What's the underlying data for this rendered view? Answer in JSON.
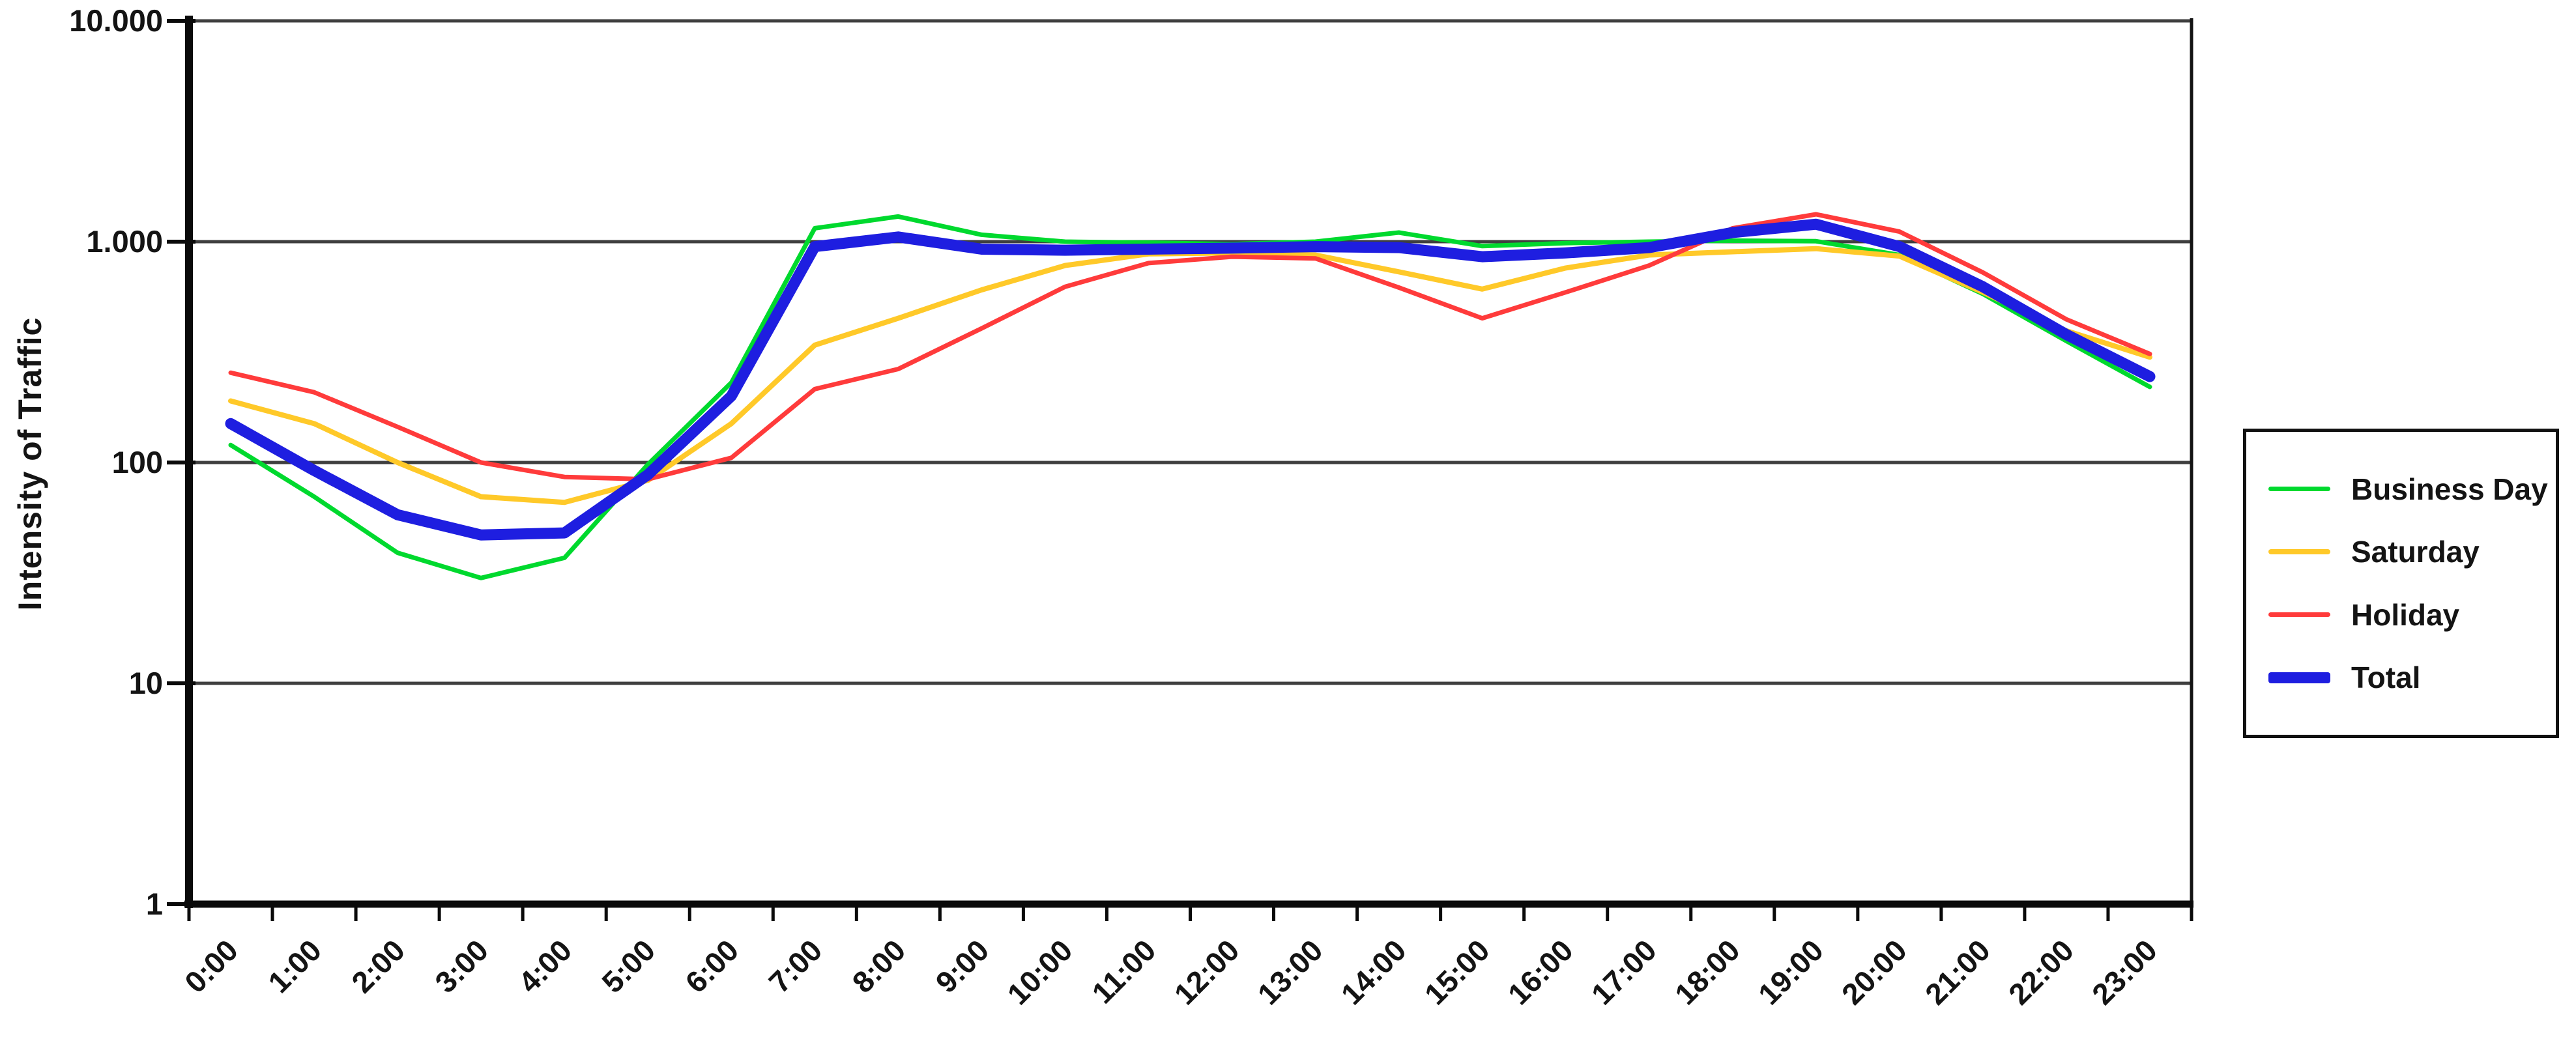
{
  "chart_data": {
    "type": "line",
    "title": "",
    "xlabel": "",
    "ylabel": "Intensity of Traffic",
    "y_scale": "log10",
    "ylim": [
      1,
      10000
    ],
    "y_tick_labels": [
      "1",
      "10",
      "100",
      "1.000",
      "10.000"
    ],
    "grid": "horizontal-gridlines-at-powers-of-10",
    "legend_position": "right-outside",
    "categories": [
      "0:00",
      "1:00",
      "2:00",
      "3:00",
      "4:00",
      "5:00",
      "6:00",
      "7:00",
      "8:00",
      "9:00",
      "10:00",
      "11:00",
      "12:00",
      "13:00",
      "14:00",
      "15:00",
      "16:00",
      "17:00",
      "18:00",
      "19:00",
      "20:00",
      "21:00",
      "22:00",
      "23:00"
    ],
    "series": [
      {
        "name": "Business Day",
        "color": "#00D92E",
        "line_width": 7,
        "values": [
          120,
          70,
          39,
          30,
          37,
          98,
          230,
          1150,
          1300,
          1075,
          1000,
          990,
          975,
          1000,
          1100,
          955,
          985,
          1000,
          1010,
          1005,
          870,
          580,
          355,
          220
        ]
      },
      {
        "name": "Saturday",
        "color": "#FFC929",
        "line_width": 8,
        "values": [
          190,
          150,
          100,
          70,
          66,
          83,
          150,
          340,
          450,
          605,
          780,
          880,
          890,
          870,
          730,
          610,
          760,
          870,
          900,
          930,
          860,
          590,
          395,
          300
        ]
      },
      {
        "name": "Holiday",
        "color": "#FF3B3B",
        "line_width": 7,
        "values": [
          255,
          208,
          145,
          100,
          86,
          84,
          105,
          215,
          265,
          405,
          625,
          800,
          855,
          840,
          620,
          450,
          590,
          780,
          1150,
          1330,
          1110,
          725,
          445,
          310
        ]
      },
      {
        "name": "Total",
        "color": "#1E1EE0",
        "line_width": 17,
        "values": [
          150,
          92,
          58,
          47,
          48,
          88,
          200,
          950,
          1050,
          925,
          915,
          925,
          935,
          950,
          940,
          855,
          890,
          940,
          1100,
          1200,
          950,
          625,
          380,
          245
        ]
      }
    ],
    "colors": {
      "gridline": "#3F3F3F",
      "axis": "#0A0A0A",
      "plot_border": "#141414",
      "label_text": "#141414"
    }
  }
}
